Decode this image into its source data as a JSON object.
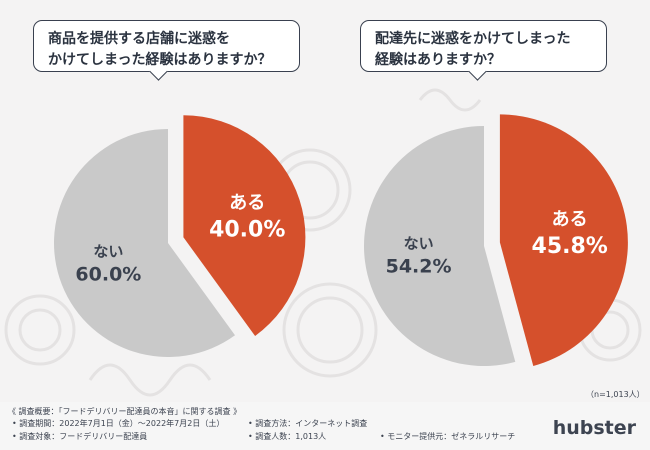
{
  "chart_data": [
    {
      "type": "pie",
      "title": "商品を提供する店舗に迷惑をかけてしまった経験はありますか？",
      "title_lines": [
        "商品を提供する店舗に迷惑を",
        "かけてしまった経験はありますか？"
      ],
      "slices": [
        {
          "label": "ある",
          "value": 40.0,
          "value_text": "40.0%",
          "color": "#d5502c"
        },
        {
          "label": "ない",
          "value": 60.0,
          "value_text": "60.0%",
          "color": "#c9c9c9"
        }
      ]
    },
    {
      "type": "pie",
      "title": "配達先に迷惑をかけてしまった経験はありますか？",
      "title_lines": [
        "配達先に迷惑をかけてしまった",
        "経験はありますか？"
      ],
      "slices": [
        {
          "label": "ある",
          "value": 45.8,
          "value_text": "45.8%",
          "color": "#d5502c"
        },
        {
          "label": "ない",
          "value": 54.2,
          "value_text": "54.2%",
          "color": "#c9c9c9"
        }
      ]
    }
  ],
  "sample_note": "（n=1,013人）",
  "survey": {
    "heading": "《 調査概要：「フードデリバリー配達員の本音」に関する調査 》",
    "period": "• 調査期間：2022年7月1日（金）〜2022年7月2日（土）",
    "method": "• 調査方法：インターネット調査",
    "target": "• 調査対象：フードデリバリー配達員",
    "count": "• 調査人数：1,013人",
    "provider": "• モニター提供元：ゼネラルリサーチ"
  },
  "brand": {
    "name": "hubster"
  }
}
